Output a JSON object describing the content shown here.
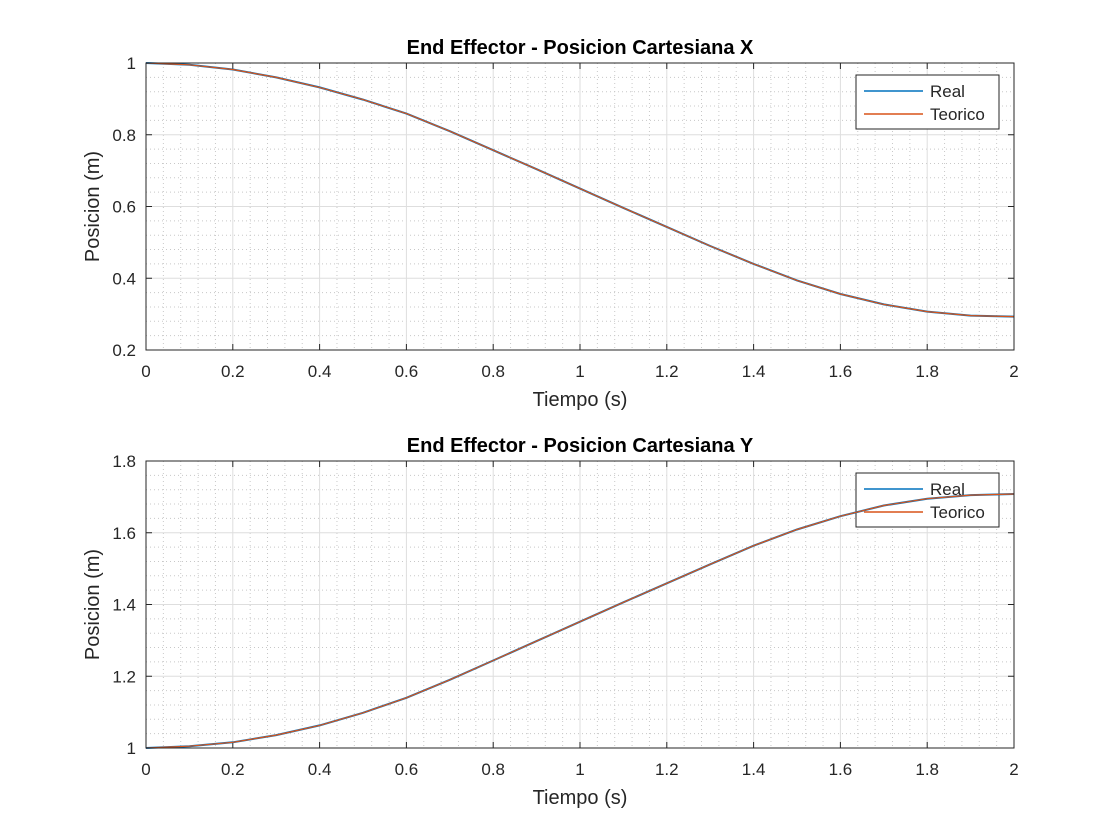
{
  "chart_data": [
    {
      "type": "line",
      "title": "End Effector - Posicion Cartesiana X",
      "xlabel": "Tiempo (s)",
      "ylabel": "Posicion (m)",
      "xlim": [
        0,
        2
      ],
      "ylim": [
        0.2,
        1
      ],
      "xticks": [
        "0",
        "0.2",
        "0.4",
        "0.6",
        "0.8",
        "1",
        "1.2",
        "1.4",
        "1.6",
        "1.8",
        "2"
      ],
      "yticks": [
        "0.2",
        "0.4",
        "0.6",
        "0.8",
        "1"
      ],
      "grid": true,
      "minor_grid": true,
      "legend": "top-right",
      "x": [
        0,
        0.1,
        0.2,
        0.3,
        0.4,
        0.5,
        0.6,
        0.7,
        0.8,
        0.9,
        1.0,
        1.1,
        1.2,
        1.3,
        1.4,
        1.5,
        1.6,
        1.7,
        1.8,
        1.9,
        2.0
      ],
      "series": [
        {
          "name": "Real",
          "color": "#0072BD",
          "values": [
            1.0,
            0.995,
            0.982,
            0.96,
            0.932,
            0.898,
            0.859,
            0.81,
            0.757,
            0.704,
            0.65,
            0.596,
            0.543,
            0.49,
            0.44,
            0.394,
            0.356,
            0.327,
            0.307,
            0.296,
            0.293
          ]
        },
        {
          "name": "Teorico",
          "color": "#D95319",
          "values": [
            1.0,
            0.995,
            0.982,
            0.96,
            0.932,
            0.898,
            0.859,
            0.81,
            0.757,
            0.704,
            0.65,
            0.596,
            0.543,
            0.49,
            0.44,
            0.394,
            0.356,
            0.327,
            0.307,
            0.296,
            0.293
          ]
        }
      ]
    },
    {
      "type": "line",
      "title": "End Effector - Posicion Cartesiana Y",
      "xlabel": "Tiempo (s)",
      "ylabel": "Posicion (m)",
      "xlim": [
        0,
        2
      ],
      "ylim": [
        1,
        1.8
      ],
      "xticks": [
        "0",
        "0.2",
        "0.4",
        "0.6",
        "0.8",
        "1",
        "1.2",
        "1.4",
        "1.6",
        "1.8",
        "2"
      ],
      "yticks": [
        "1",
        "1.2",
        "1.4",
        "1.6",
        "1.8"
      ],
      "grid": true,
      "minor_grid": true,
      "legend": "top-right",
      "x": [
        0,
        0.1,
        0.2,
        0.3,
        0.4,
        0.5,
        0.6,
        0.7,
        0.8,
        0.9,
        1.0,
        1.1,
        1.2,
        1.3,
        1.4,
        1.5,
        1.6,
        1.7,
        1.8,
        1.9,
        2.0
      ],
      "series": [
        {
          "name": "Real",
          "color": "#0072BD",
          "values": [
            1.0,
            1.005,
            1.016,
            1.036,
            1.063,
            1.098,
            1.14,
            1.19,
            1.244,
            1.298,
            1.352,
            1.406,
            1.459,
            1.512,
            1.564,
            1.609,
            1.646,
            1.676,
            1.695,
            1.705,
            1.708
          ]
        },
        {
          "name": "Teorico",
          "color": "#D95319",
          "values": [
            1.0,
            1.005,
            1.016,
            1.036,
            1.063,
            1.098,
            1.14,
            1.19,
            1.244,
            1.298,
            1.352,
            1.406,
            1.459,
            1.512,
            1.564,
            1.609,
            1.646,
            1.676,
            1.695,
            1.705,
            1.708
          ]
        }
      ]
    }
  ]
}
